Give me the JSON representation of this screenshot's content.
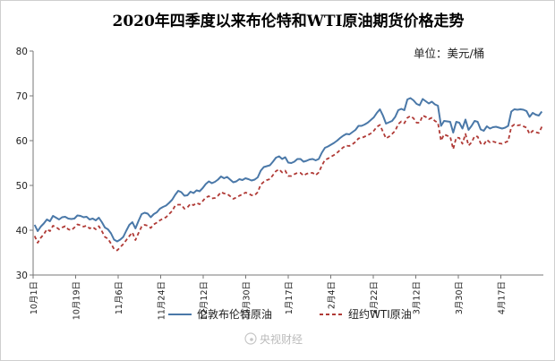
{
  "chart_data": {
    "type": "line",
    "title": "2020年四季度以来布伦特和WTI原油期货价格走势",
    "unit_label": "单位：美元/桶",
    "ylim": [
      30,
      80
    ],
    "y_ticks": [
      30,
      40,
      50,
      60,
      70,
      80
    ],
    "grid": false,
    "legend_position": "bottom",
    "x_tick_labels": [
      "10月1日",
      "10月19日",
      "11月6日",
      "11月24日",
      "12月12日",
      "12月30日",
      "1月17日",
      "2月4日",
      "2月22日",
      "3月12日",
      "3月30日",
      "4月17日"
    ],
    "series": [
      {
        "name": "伦敦布伦特原油",
        "color": "#4a78a8",
        "dash": "solid",
        "values": [
          41.2,
          39.8,
          40.8,
          41.5,
          42.4,
          42.0,
          43.2,
          42.8,
          42.4,
          42.9,
          43.0,
          42.6,
          42.5,
          42.6,
          43.3,
          43.2,
          42.9,
          43.0,
          42.4,
          42.6,
          42.2,
          42.8,
          41.8,
          40.6,
          40.2,
          39.3,
          37.9,
          37.5,
          37.9,
          38.5,
          39.9,
          41.2,
          41.8,
          40.4,
          42.1,
          43.6,
          43.9,
          43.7,
          42.9,
          43.6,
          44.0,
          44.8,
          45.2,
          45.5,
          46.1,
          46.8,
          47.9,
          48.8,
          48.5,
          47.7,
          47.8,
          48.6,
          48.3,
          48.9,
          48.7,
          49.4,
          50.3,
          50.9,
          50.5,
          50.8,
          51.3,
          52.0,
          51.6,
          51.9,
          51.3,
          50.7,
          50.9,
          51.4,
          51.2,
          51.6,
          51.4,
          51.1,
          51.3,
          51.8,
          53.3,
          54.1,
          54.3,
          54.5,
          55.3,
          56.2,
          56.5,
          55.9,
          56.3,
          55.1,
          55.0,
          55.3,
          55.9,
          55.9,
          55.3,
          55.5,
          55.8,
          55.9,
          55.6,
          55.9,
          57.3,
          58.4,
          58.7,
          59.1,
          59.5,
          60.0,
          60.6,
          61.1,
          61.5,
          61.4,
          61.9,
          62.4,
          63.3,
          63.3,
          63.6,
          64.0,
          64.6,
          65.2,
          66.2,
          67.0,
          65.6,
          63.8,
          64.1,
          64.4,
          65.3,
          66.8,
          67.1,
          66.8,
          69.2,
          69.5,
          69.0,
          68.2,
          67.9,
          69.3,
          68.8,
          68.3,
          68.7,
          68.1,
          67.8,
          63.3,
          64.4,
          64.3,
          64.2,
          61.8,
          64.2,
          64.0,
          62.7,
          64.7,
          62.4,
          63.3,
          64.4,
          64.2,
          62.5,
          62.2,
          63.2,
          62.7,
          63.0,
          63.1,
          62.9,
          62.7,
          62.9,
          63.3,
          66.5,
          67.0,
          66.9,
          67.0,
          66.9,
          66.6,
          65.3,
          66.2,
          65.8,
          65.6,
          66.5
        ]
      },
      {
        "name": "纽约WTI原油",
        "color": "#b03a36",
        "dash": "dashed",
        "values": [
          38.7,
          37.2,
          38.3,
          39.1,
          40.2,
          39.8,
          41.0,
          40.7,
          40.2,
          40.6,
          40.9,
          40.2,
          40.0,
          40.6,
          41.3,
          41.1,
          40.8,
          41.0,
          40.4,
          40.7,
          40.2,
          40.9,
          39.8,
          38.5,
          38.1,
          37.0,
          35.8,
          35.5,
          36.2,
          36.9,
          37.8,
          38.7,
          39.5,
          37.8,
          39.4,
          40.8,
          41.2,
          41.0,
          40.5,
          41.3,
          41.7,
          42.2,
          42.6,
          42.9,
          43.6,
          44.3,
          45.5,
          45.7,
          45.7,
          44.8,
          45.1,
          45.9,
          45.6,
          46.1,
          45.8,
          46.5,
          47.3,
          47.6,
          47.1,
          47.2,
          47.7,
          48.5,
          48.2,
          48.1,
          47.6,
          47.0,
          47.3,
          47.7,
          48.0,
          48.4,
          48.2,
          47.8,
          47.8,
          48.5,
          50.2,
          50.8,
          51.2,
          51.4,
          52.3,
          53.2,
          53.6,
          52.9,
          53.3,
          52.1,
          52.1,
          52.5,
          52.8,
          52.8,
          52.2,
          52.6,
          52.8,
          52.8,
          52.3,
          52.9,
          54.4,
          55.7,
          56.0,
          56.4,
          56.8,
          57.3,
          57.9,
          58.5,
          58.9,
          58.8,
          59.2,
          59.7,
          60.5,
          60.6,
          60.9,
          61.2,
          61.6,
          62.2,
          63.1,
          63.5,
          62.0,
          60.5,
          60.9,
          61.5,
          62.2,
          63.7,
          64.3,
          63.9,
          65.1,
          65.5,
          65.0,
          64.0,
          64.0,
          65.6,
          65.3,
          64.8,
          65.1,
          64.4,
          64.0,
          60.0,
          61.4,
          61.1,
          60.9,
          58.1,
          60.7,
          60.6,
          59.3,
          61.5,
          58.9,
          59.6,
          61.0,
          60.9,
          59.4,
          59.1,
          60.2,
          59.6,
          59.8,
          59.6,
          59.4,
          59.3,
          59.6,
          59.9,
          63.1,
          63.6,
          63.4,
          63.5,
          63.2,
          62.9,
          61.5,
          62.2,
          61.9,
          61.7,
          63.1
        ]
      }
    ]
  },
  "watermark_text": "央视财经"
}
